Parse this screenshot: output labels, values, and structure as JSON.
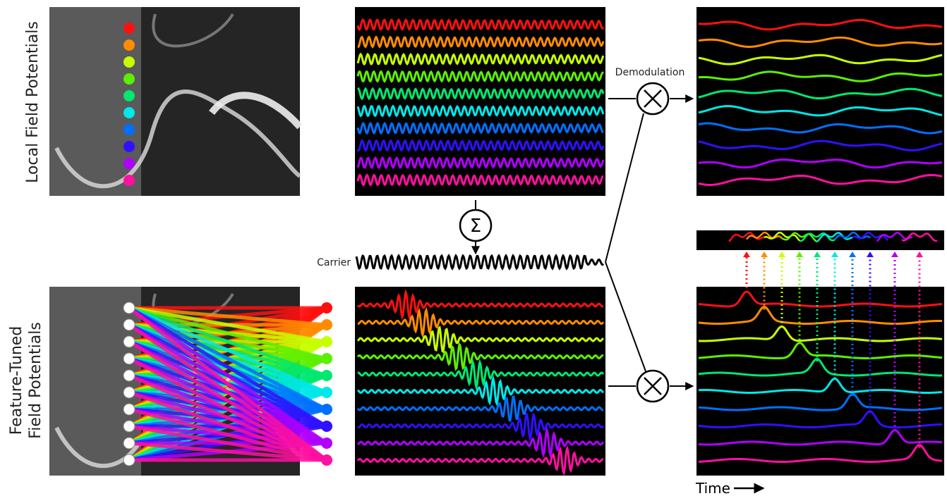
{
  "labels": {
    "top_row": "Local Field Potentials",
    "bottom_row": [
      "Feature-Tuned",
      "Field Potentials"
    ],
    "demodulation": "Demodulation",
    "carrier": "Carrier",
    "time_axis": "Time",
    "sum_symbol": "Σ"
  }
}
